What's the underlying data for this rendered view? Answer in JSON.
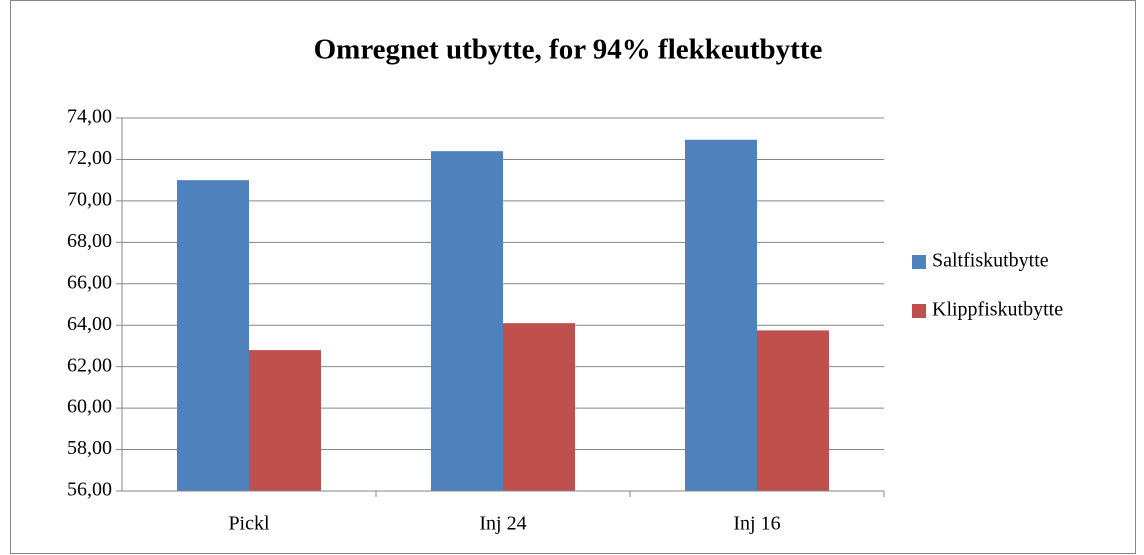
{
  "chart_data": {
    "type": "bar",
    "title": "Omregnet utbytte, for 94% flekkeutbytte",
    "categories": [
      "Pickl",
      "Inj 24",
      "Inj 16"
    ],
    "series": [
      {
        "name": "Saltfiskutbytte",
        "color": "#4f81bd",
        "values": [
          71.0,
          72.4,
          72.95
        ]
      },
      {
        "name": "Klippfiskutbytte",
        "color": "#c0504d",
        "values": [
          62.8,
          64.1,
          63.75
        ]
      }
    ],
    "ylim": [
      56,
      74
    ],
    "yticks": [
      {
        "value": 56,
        "label": "56,00"
      },
      {
        "value": 58,
        "label": "58,00"
      },
      {
        "value": 60,
        "label": "60,00"
      },
      {
        "value": 62,
        "label": "62,00"
      },
      {
        "value": 64,
        "label": "64,00"
      },
      {
        "value": 66,
        "label": "66,00"
      },
      {
        "value": 68,
        "label": "68,00"
      },
      {
        "value": 70,
        "label": "70,00"
      },
      {
        "value": 72,
        "label": "72,00"
      },
      {
        "value": 74,
        "label": "74,00"
      }
    ],
    "grid": true,
    "legend": "right"
  }
}
